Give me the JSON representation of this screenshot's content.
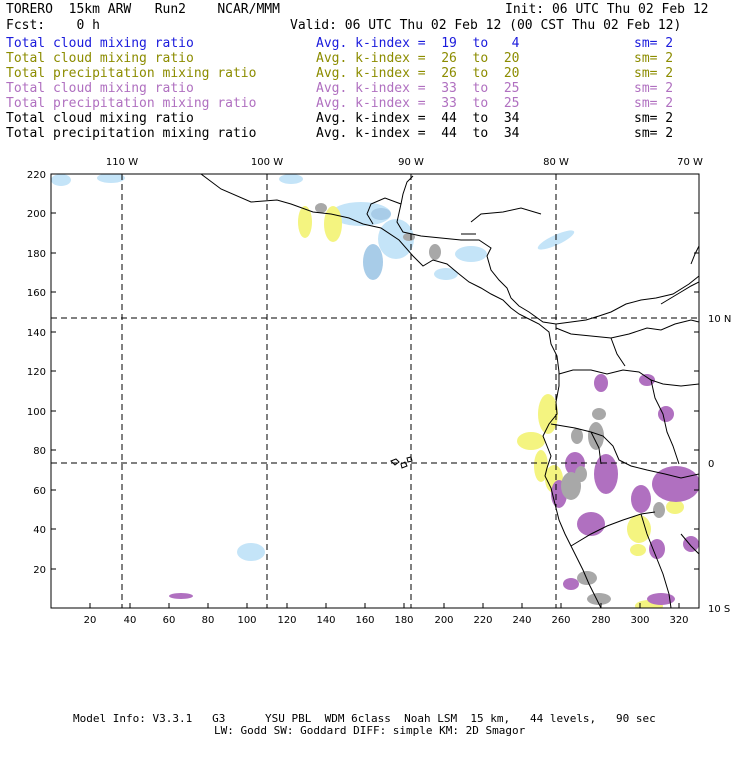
{
  "header": {
    "title_left": "TORERO  15km ARW   Run2    NCAR/MMM",
    "init": "Init: 06 UTC Thu 02 Feb 12",
    "fcst": "Fcst:    0 h",
    "valid": "Valid: 06 UTC Thu 02 Feb 12 (00 CST Thu 02 Feb 12)"
  },
  "legend": [
    {
      "label": "Total cloud mixing ratio",
      "k_index": "Avg. k-index =  19  to   4",
      "sm": "sm= 2",
      "color": "#1a1adc"
    },
    {
      "label": "Total cloud mixing ratio",
      "k_index": "Avg. k-index =  26  to  20",
      "sm": "sm= 2",
      "color": "#8c8c00"
    },
    {
      "label": "Total precipitation mixing ratio",
      "k_index": "Avg. k-index =  26  to  20",
      "sm": "sm= 2",
      "color": "#8c8c00"
    },
    {
      "label": "Total cloud mixing ratio",
      "k_index": "Avg. k-index =  33  to  25",
      "sm": "sm= 2",
      "color": "#b070c0"
    },
    {
      "label": "Total precipitation mixing ratio",
      "k_index": "Avg. k-index =  33  to  25",
      "sm": "sm= 2",
      "color": "#b070c0"
    },
    {
      "label": "Total cloud mixing ratio",
      "k_index": "Avg. k-index =  44  to  34",
      "sm": "sm= 2",
      "color": "#000000"
    },
    {
      "label": "Total precipitation mixing ratio",
      "k_index": "Avg. k-index =  44  to  34",
      "sm": "sm= 2",
      "color": "#000000"
    }
  ],
  "map": {
    "lon_labels": [
      "110 W",
      "100 W",
      "90 W",
      "80 W",
      "70 W"
    ],
    "lat_labels": [
      "10 N",
      "0",
      "10 S"
    ],
    "x_ticks": [
      "20",
      "40",
      "60",
      "80",
      "100",
      "120",
      "140",
      "160",
      "180",
      "200",
      "220",
      "240",
      "260",
      "280",
      "300",
      "320"
    ],
    "y_ticks": [
      "220",
      "200",
      "180",
      "160",
      "140",
      "120",
      "100",
      "80",
      "60",
      "40",
      "20"
    ],
    "colors": {
      "light_blue": "#c4e4f8",
      "blue": "#a8cce8",
      "yellow": "#f4f480",
      "purple": "#b070c0",
      "grey": "#a8a8a8",
      "coast": "#000000",
      "grid": "#000000"
    }
  },
  "footer": {
    "line1": "Model Info: V3.3.1   G3      YSU PBL  WDM 6class  Noah LSM  15 km,   44 levels,   90 sec",
    "line2": "LW: Godd SW: Goddard DIFF: simple KM: 2D Smagor"
  }
}
